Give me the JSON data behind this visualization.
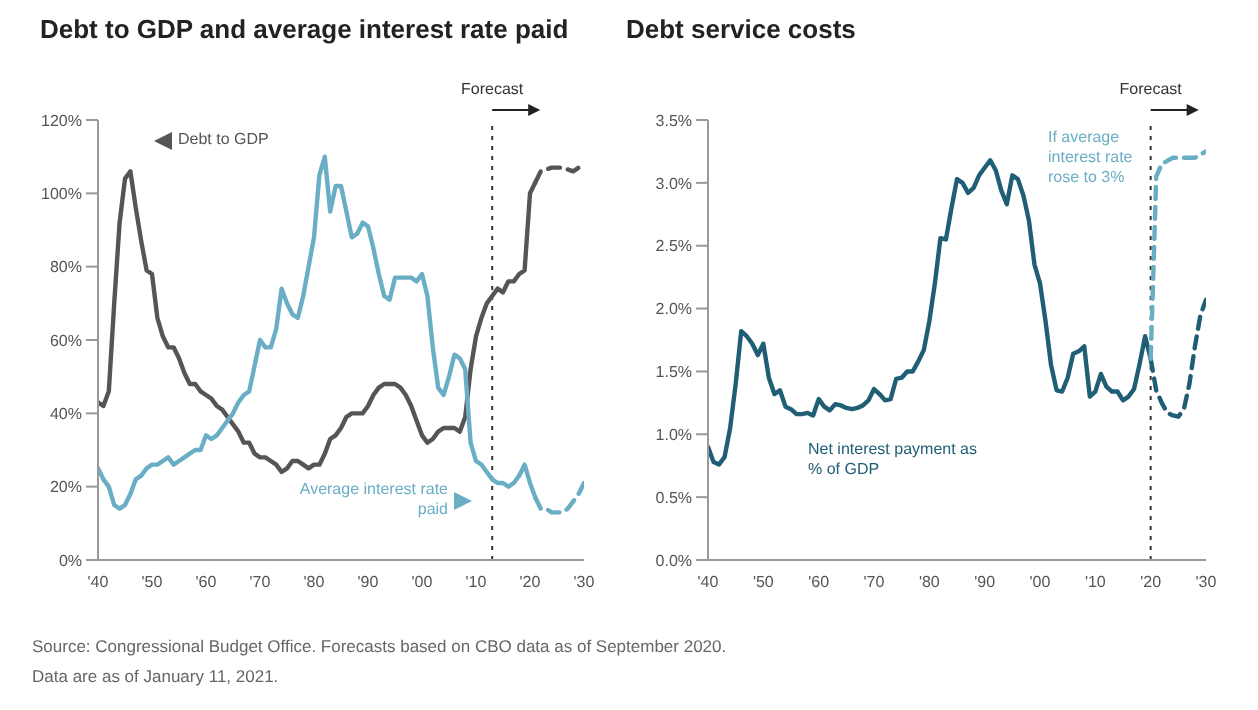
{
  "chart_data": [
    {
      "type": "line",
      "title": "Debt to GDP and average interest rate paid",
      "marker": "none",
      "xlim": [
        1940,
        2030
      ],
      "xticks": [
        {
          "value": 1940,
          "label": "'40"
        },
        {
          "value": 1950,
          "label": "'50"
        },
        {
          "value": 1960,
          "label": "'60"
        },
        {
          "value": 1970,
          "label": "'70"
        },
        {
          "value": 1980,
          "label": "'80"
        },
        {
          "value": 1990,
          "label": "'90"
        },
        {
          "value": 2000,
          "label": "'00"
        },
        {
          "value": 2010,
          "label": "'10"
        },
        {
          "value": 2020,
          "label": "'20"
        },
        {
          "value": 2030,
          "label": "'30"
        }
      ],
      "ylim": [
        0,
        120
      ],
      "yticks": [
        {
          "value": 0,
          "label": "0%"
        },
        {
          "value": 20,
          "label": "20%"
        },
        {
          "value": 40,
          "label": "40%"
        },
        {
          "value": 60,
          "label": "60%"
        },
        {
          "value": 80,
          "label": "80%"
        },
        {
          "value": 100,
          "label": "100%"
        },
        {
          "value": 120,
          "label": "120%"
        }
      ],
      "ref_lines": [
        {
          "axis": "x",
          "value": 2013,
          "label": "Forecast",
          "line_style": "dotted",
          "color": "#333333"
        }
      ],
      "series": [
        {
          "name": "Debt to GDP",
          "color": "#555555",
          "line_style": "solid",
          "x": [
            1940,
            1941,
            1942,
            1943,
            1944,
            1945,
            1946,
            1947,
            1948,
            1949,
            1950,
            1951,
            1952,
            1953,
            1954,
            1955,
            1956,
            1957,
            1958,
            1959,
            1960,
            1961,
            1962,
            1963,
            1964,
            1965,
            1966,
            1967,
            1968,
            1969,
            1970,
            1971,
            1972,
            1973,
            1974,
            1975,
            1976,
            1977,
            1978,
            1979,
            1980,
            1981,
            1982,
            1983,
            1984,
            1985,
            1986,
            1987,
            1988,
            1989,
            1990,
            1991,
            1992,
            1993,
            1994,
            1995,
            1996,
            1997,
            1998,
            1999,
            2000,
            2001,
            2002,
            2003,
            2004,
            2005,
            2006,
            2007,
            2008,
            2009,
            2010,
            2011,
            2012,
            2013,
            2014,
            2015,
            2016,
            2017,
            2018,
            2019,
            2020,
            2021
          ],
          "values": [
            43,
            42,
            46,
            70,
            92,
            104,
            106,
            96,
            87,
            79,
            78,
            66,
            61,
            58,
            58,
            55,
            51,
            48,
            48,
            46,
            45,
            44,
            42,
            41,
            39,
            37,
            35,
            32,
            32,
            29,
            28,
            28,
            27,
            26,
            24,
            25,
            27,
            27,
            26,
            25,
            26,
            26,
            29,
            33,
            34,
            36,
            39,
            40,
            40,
            40,
            42,
            45,
            47,
            48,
            48,
            48,
            47,
            45,
            42,
            38,
            34,
            32,
            33,
            35,
            36,
            36,
            36,
            35,
            39,
            52,
            61,
            66,
            70,
            72,
            74,
            73,
            76,
            76,
            78,
            79,
            100,
            103
          ]
        },
        {
          "color": "#555555",
          "line_style": "dashed",
          "x": [
            2021,
            2022,
            2024,
            2026,
            2028,
            2030
          ],
          "values": [
            103,
            106,
            107,
            107,
            106,
            108
          ]
        },
        {
          "name": "Average interest rate paid",
          "color": "#6aaec6",
          "line_style": "solid",
          "x": [
            1940,
            1941,
            1942,
            1943,
            1944,
            1945,
            1946,
            1947,
            1948,
            1949,
            1950,
            1951,
            1952,
            1953,
            1954,
            1955,
            1956,
            1957,
            1958,
            1959,
            1960,
            1961,
            1962,
            1963,
            1964,
            1965,
            1966,
            1967,
            1968,
            1969,
            1970,
            1971,
            1972,
            1973,
            1974,
            1975,
            1976,
            1977,
            1978,
            1979,
            1980,
            1981,
            1982,
            1983,
            1984,
            1985,
            1986,
            1987,
            1988,
            1989,
            1990,
            1991,
            1992,
            1993,
            1994,
            1995,
            1996,
            1997,
            1998,
            1999,
            2000,
            2001,
            2002,
            2003,
            2004,
            2005,
            2006,
            2007,
            2008,
            2009,
            2010,
            2011,
            2012,
            2013,
            2014,
            2015,
            2016,
            2017,
            2018,
            2019,
            2020,
            2021
          ],
          "values": [
            25,
            22,
            20,
            15,
            14,
            15,
            18,
            22,
            23,
            25,
            26,
            26,
            27,
            28,
            26,
            27,
            28,
            29,
            30,
            30,
            34,
            33,
            34,
            36,
            38,
            40,
            43,
            45,
            46,
            53,
            60,
            58,
            58,
            63,
            74,
            70,
            67,
            66,
            72,
            80,
            88,
            105,
            110,
            95,
            102,
            102,
            95,
            88,
            89,
            92,
            91,
            85,
            78,
            72,
            71,
            77,
            77,
            77,
            77,
            76,
            78,
            72,
            58,
            47,
            45,
            50,
            56,
            55,
            52,
            32,
            27,
            26,
            24,
            22,
            21,
            21,
            20,
            21,
            23,
            26,
            21,
            17
          ]
        },
        {
          "color": "#6aaec6",
          "line_style": "dashed",
          "x": [
            2021,
            2022,
            2023,
            2024,
            2025,
            2026,
            2027,
            2028,
            2029,
            2030
          ],
          "values": [
            17,
            14,
            14,
            13,
            13,
            13,
            14,
            16,
            18,
            21
          ]
        }
      ],
      "annotations": [
        "Source: Congressional Budget Office. Forecasts based on CBO data as of September 2020.",
        "Data are as of January 11, 2021."
      ]
    },
    {
      "type": "line",
      "title": "Debt service costs",
      "xlim": [
        1940,
        2030
      ],
      "xticks": [
        {
          "value": 1940,
          "label": "'40"
        },
        {
          "value": 1950,
          "label": "'50"
        },
        {
          "value": 1960,
          "label": "'60"
        },
        {
          "value": 1970,
          "label": "'70"
        },
        {
          "value": 1980,
          "label": "'80"
        },
        {
          "value": 1990,
          "label": "'90"
        },
        {
          "value": 2000,
          "label": "'00"
        },
        {
          "value": 2010,
          "label": "'10"
        },
        {
          "value": 2020,
          "label": "'20"
        },
        {
          "value": 2030,
          "label": "'30"
        }
      ],
      "ylim": [
        0,
        3.5
      ],
      "yticks": [
        {
          "value": 0,
          "label": "0.0%"
        },
        {
          "value": 0.5,
          "label": "0.5%"
        },
        {
          "value": 1,
          "label": "1.0%"
        },
        {
          "value": 1.5,
          "label": "1.5%"
        },
        {
          "value": 2,
          "label": "2.0%"
        },
        {
          "value": 2.5,
          "label": "2.5%"
        },
        {
          "value": 3,
          "label": "3.0%"
        },
        {
          "value": 3.5,
          "label": "3.5%"
        }
      ],
      "ref_lines": [
        {
          "axis": "x",
          "value": 2020,
          "label": "Forecast",
          "line_style": "dotted",
          "color": "#333333"
        }
      ],
      "series": [
        {
          "name": "Net interest payment as % of GDP",
          "color": "#1f5e74",
          "line_style": "solid",
          "x": [
            1940,
            1941,
            1942,
            1943,
            1944,
            1945,
            1946,
            1947,
            1948,
            1949,
            1950,
            1951,
            1952,
            1953,
            1954,
            1955,
            1956,
            1957,
            1958,
            1959,
            1960,
            1961,
            1962,
            1963,
            1964,
            1965,
            1966,
            1967,
            1968,
            1969,
            1970,
            1971,
            1972,
            1973,
            1974,
            1975,
            1976,
            1977,
            1978,
            1979,
            1980,
            1981,
            1982,
            1983,
            1984,
            1985,
            1986,
            1987,
            1988,
            1989,
            1990,
            1991,
            1992,
            1993,
            1994,
            1995,
            1996,
            1997,
            1998,
            1999,
            2000,
            2001,
            2002,
            2003,
            2004,
            2005,
            2006,
            2007,
            2008,
            2009,
            2010,
            2011,
            2012,
            2013,
            2014,
            2015,
            2016,
            2017,
            2018,
            2019,
            2020
          ],
          "values": [
            0.9,
            0.78,
            0.76,
            0.82,
            1.05,
            1.4,
            1.82,
            1.78,
            1.72,
            1.63,
            1.72,
            1.45,
            1.32,
            1.35,
            1.22,
            1.2,
            1.16,
            1.16,
            1.17,
            1.15,
            1.28,
            1.22,
            1.19,
            1.24,
            1.23,
            1.21,
            1.2,
            1.21,
            1.23,
            1.27,
            1.36,
            1.32,
            1.27,
            1.28,
            1.44,
            1.45,
            1.5,
            1.5,
            1.58,
            1.67,
            1.9,
            2.2,
            2.56,
            2.55,
            2.8,
            3.03,
            3,
            2.92,
            2.96,
            3.06,
            3.12,
            3.18,
            3.1,
            2.94,
            2.83,
            3.06,
            3.03,
            2.9,
            2.7,
            2.35,
            2.2,
            1.9,
            1.55,
            1.35,
            1.34,
            1.45,
            1.64,
            1.66,
            1.7,
            1.3,
            1.34,
            1.48,
            1.38,
            1.34,
            1.34,
            1.27,
            1.3,
            1.36,
            1.56,
            1.78,
            1.6
          ]
        },
        {
          "color": "#1f5e74",
          "line_style": "dashed",
          "x": [
            2020,
            2021,
            2022,
            2023,
            2024,
            2025,
            2026,
            2027,
            2028,
            2029,
            2030
          ],
          "values": [
            1.6,
            1.35,
            1.25,
            1.17,
            1.15,
            1.14,
            1.2,
            1.4,
            1.7,
            1.95,
            2.07
          ]
        },
        {
          "name": "If average interest rate rose to 3%",
          "color": "#6aaec6",
          "line_style": "dashed",
          "x": [
            2020,
            2020.5,
            2021,
            2022,
            2024,
            2026,
            2028,
            2030
          ],
          "values": [
            1.6,
            2.3,
            3.05,
            3.15,
            3.2,
            3.2,
            3.2,
            3.25
          ]
        }
      ],
      "marker": "none"
    }
  ]
}
